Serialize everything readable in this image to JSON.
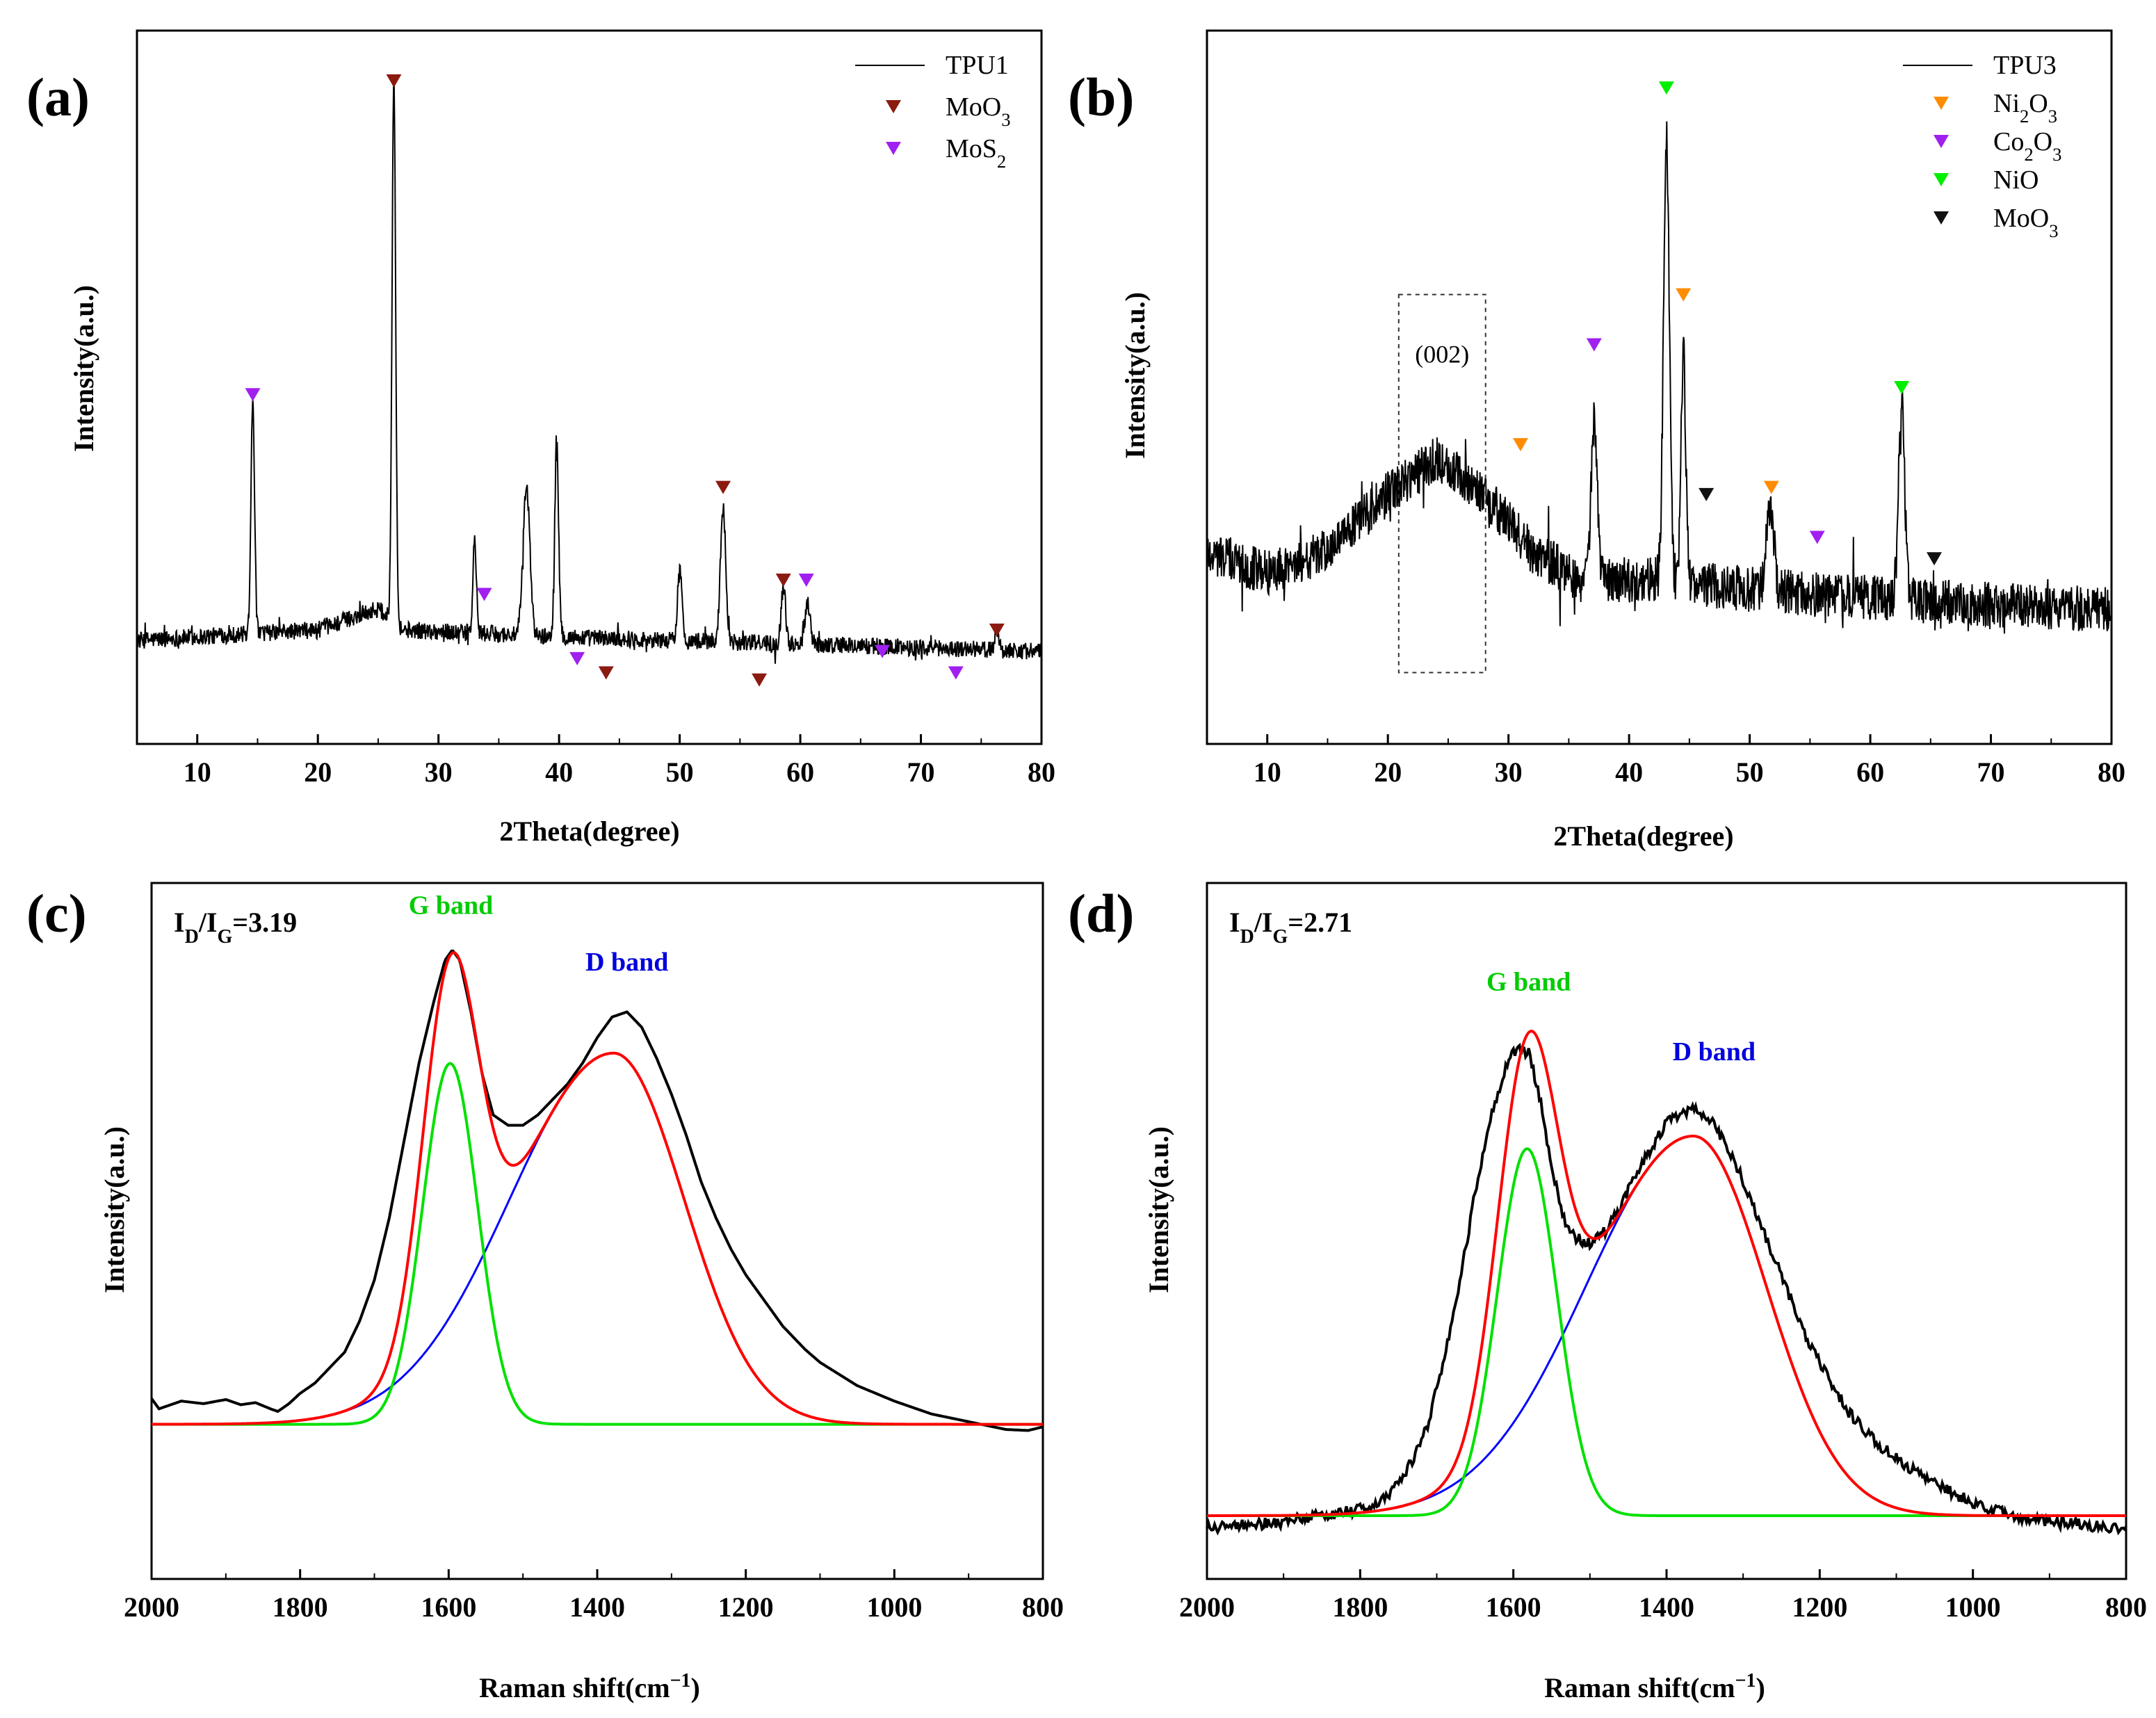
{
  "chart_data": [
    {
      "panel": "(a)",
      "type": "line",
      "xlabel": "2Theta(degree)",
      "ylabel": "Intensity(a.u.)",
      "xlim": [
        5,
        80
      ],
      "ylim": [
        0,
        100
      ],
      "xticks": [
        10,
        20,
        30,
        40,
        50,
        60,
        70,
        80
      ],
      "legend_position": "top-right",
      "series": [
        {
          "name": "TPU1",
          "color": "#000000",
          "noise": 1.2,
          "baseline": [
            [
              5,
              14.5
            ],
            [
              20,
              16
            ],
            [
              25,
              19
            ],
            [
              27,
              16
            ],
            [
              40,
              15
            ],
            [
              60,
              14
            ],
            [
              80,
              13
            ]
          ],
          "peaks": [
            [
              14.6,
              33,
              0.15
            ],
            [
              26.3,
              77,
              0.15
            ],
            [
              33.0,
              13,
              0.14
            ],
            [
              37.3,
              21,
              0.28
            ],
            [
              39.8,
              27,
              0.16
            ],
            [
              50.0,
              10,
              0.18
            ],
            [
              53.6,
              19,
              0.22
            ],
            [
              58.6,
              8,
              0.18
            ],
            [
              60.6,
              6,
              0.22
            ],
            [
              76.3,
              3,
              0.15
            ]
          ]
        }
      ],
      "markers": [
        {
          "name": "MoO",
          "sub": "3",
          "color": "#8b1a10",
          "points": [
            [
              26.3,
              93
            ],
            [
              43.9,
              10
            ],
            [
              53.6,
              36
            ],
            [
              56.6,
              9
            ],
            [
              58.6,
              23
            ],
            [
              76.3,
              16
            ]
          ]
        },
        {
          "name": "MoS",
          "sub": "2",
          "color": "#a020f0",
          "points": [
            [
              14.6,
              49
            ],
            [
              33.8,
              21
            ],
            [
              41.5,
              12
            ],
            [
              60.5,
              23
            ],
            [
              66.8,
              13
            ],
            [
              72.9,
              10
            ]
          ]
        }
      ]
    },
    {
      "panel": "(b)",
      "type": "line",
      "xlabel": "2Theta(degree)",
      "ylabel": "Intensity(a.u.)",
      "xlim": [
        5,
        80
      ],
      "ylim": [
        0,
        100
      ],
      "xticks": [
        10,
        20,
        30,
        40,
        50,
        60,
        70,
        80
      ],
      "legend_position": "top-right",
      "annotation": {
        "text": "(002)",
        "x0": 20.9,
        "x1": 28.1,
        "y0": 10,
        "y1": 63
      },
      "series": [
        {
          "name": "TPU3",
          "color": "#000000",
          "noise": 3.2,
          "baseline": [
            [
              5,
              27
            ],
            [
              10,
              24
            ],
            [
              15,
              27
            ],
            [
              20,
              35
            ],
            [
              24,
              40
            ],
            [
              28,
              35
            ],
            [
              32,
              27
            ],
            [
              36,
              23
            ],
            [
              42,
              23
            ],
            [
              48,
              22
            ],
            [
              55,
              21
            ],
            [
              65,
              20
            ],
            [
              75,
              19
            ],
            [
              80,
              19
            ]
          ],
          "peaks": [
            [
              37.1,
              22,
              0.25
            ],
            [
              43.1,
              62,
              0.24
            ],
            [
              44.5,
              32,
              0.2
            ],
            [
              51.7,
              12,
              0.3
            ],
            [
              62.6,
              28,
              0.25
            ]
          ]
        }
      ],
      "markers": [
        {
          "name": "Ni",
          "sub": "2",
          "name2": "O",
          "sub2": "3",
          "color": "#ff8c00",
          "points": [
            [
              31.0,
              42
            ],
            [
              44.5,
              63
            ],
            [
              51.8,
              36
            ]
          ]
        },
        {
          "name": "Co",
          "sub": "2",
          "name2": "O",
          "sub2": "3",
          "color": "#a020f0",
          "points": [
            [
              37.1,
              56
            ],
            [
              55.6,
              29
            ]
          ]
        },
        {
          "name": "NiO",
          "color": "#00ee00",
          "points": [
            [
              43.1,
              92
            ],
            [
              62.6,
              50
            ]
          ]
        },
        {
          "name": "MoO",
          "sub": "3",
          "color": "#111111",
          "points": [
            [
              46.4,
              35
            ],
            [
              65.3,
              26
            ]
          ]
        }
      ]
    },
    {
      "panel": "(c)",
      "type": "line",
      "xlabel": "Raman shift(cm",
      "xlabel_sup": "−1",
      "xlabel_end": ")",
      "ylabel": "Intensity(a.u.)",
      "xlim": [
        2000,
        800
      ],
      "ylim": [
        -30,
        105
      ],
      "xticks": [
        2000,
        1800,
        1600,
        1400,
        1200,
        1000,
        800
      ],
      "annotation": {
        "lead": "I",
        "sub1": "D",
        "mid": "/I",
        "sub2": "G",
        "tail": "=3.19"
      },
      "labels": [
        {
          "text": "G band",
          "color": "#00cc00",
          "x": 1597,
          "y": 99
        },
        {
          "text": "D band",
          "color": "#0000dd",
          "x": 1360,
          "y": 88
        }
      ],
      "series": [
        {
          "name": "measured",
          "color": "#000000",
          "points": [
            [
              2000,
              5
            ],
            [
              1990,
              3
            ],
            [
              1960,
              4.5
            ],
            [
              1930,
              4
            ],
            [
              1900,
              4.8
            ],
            [
              1880,
              3.8
            ],
            [
              1860,
              4.2
            ],
            [
              1840,
              3
            ],
            [
              1830,
              2.5
            ],
            [
              1815,
              4
            ],
            [
              1800,
              6
            ],
            [
              1780,
              8
            ],
            [
              1760,
              11
            ],
            [
              1740,
              14
            ],
            [
              1720,
              20
            ],
            [
              1700,
              28
            ],
            [
              1680,
              40
            ],
            [
              1660,
              55
            ],
            [
              1640,
              70
            ],
            [
              1620,
              82
            ],
            [
              1605,
              90
            ],
            [
              1595,
              92
            ],
            [
              1585,
              90
            ],
            [
              1570,
              80
            ],
            [
              1555,
              68
            ],
            [
              1540,
              60
            ],
            [
              1520,
              58
            ],
            [
              1500,
              58
            ],
            [
              1480,
              60
            ],
            [
              1460,
              63
            ],
            [
              1440,
              66
            ],
            [
              1420,
              70
            ],
            [
              1400,
              75
            ],
            [
              1380,
              79
            ],
            [
              1360,
              80
            ],
            [
              1340,
              77
            ],
            [
              1320,
              71
            ],
            [
              1300,
              64
            ],
            [
              1280,
              56
            ],
            [
              1260,
              47
            ],
            [
              1240,
              40
            ],
            [
              1220,
              34
            ],
            [
              1200,
              29
            ],
            [
              1180,
              25
            ],
            [
              1150,
              19
            ],
            [
              1120,
              14.5
            ],
            [
              1100,
              12
            ],
            [
              1050,
              7.5
            ],
            [
              1000,
              4.5
            ],
            [
              950,
              2
            ],
            [
              900,
              0.5
            ],
            [
              850,
              -1
            ],
            [
              820,
              -1.2
            ],
            [
              800,
              -0.5
            ]
          ]
        },
        {
          "name": "G",
          "color": "#00e000",
          "type": "gauss",
          "center": 1598,
          "amp": 70,
          "sigma": 37
        },
        {
          "name": "D",
          "color": "#0000ff",
          "type": "skew",
          "center": 1378,
          "amp": 72,
          "sigma_left": 95,
          "sigma_right": 140
        },
        {
          "name": "fit",
          "color": "#ff0000",
          "type": "sum"
        }
      ]
    },
    {
      "panel": "(d)",
      "type": "line",
      "xlabel": "Raman shift(cm",
      "xlabel_sup": "−1",
      "xlabel_end": ")",
      "ylabel": "Intensity(a.u.)",
      "xlim": [
        2000,
        800
      ],
      "ylim": [
        -10,
        100
      ],
      "xticks": [
        2000,
        1800,
        1600,
        1400,
        1200,
        1000,
        800
      ],
      "annotation": {
        "lead": "I",
        "sub1": "D",
        "mid": "/I",
        "sub2": "G",
        "tail": "=2.71"
      },
      "labels": [
        {
          "text": "G band",
          "color": "#00cc00",
          "x": 1580,
          "y": 83
        },
        {
          "text": "D band",
          "color": "#0000dd",
          "x": 1338,
          "y": 72
        }
      ],
      "series": [
        {
          "name": "measured",
          "color": "#000000",
          "noise": 0.9,
          "points": [
            [
              2000,
              -2
            ],
            [
              1950,
              -1.5
            ],
            [
              1900,
              -1
            ],
            [
              1850,
              0
            ],
            [
              1800,
              1
            ],
            [
              1775,
              2
            ],
            [
              1750,
              5
            ],
            [
              1730,
              9
            ],
            [
              1710,
              15
            ],
            [
              1690,
              25
            ],
            [
              1670,
              37
            ],
            [
              1650,
              51
            ],
            [
              1630,
              63
            ],
            [
              1610,
              71
            ],
            [
              1595,
              74
            ],
            [
              1580,
              73
            ],
            [
              1565,
              66
            ],
            [
              1550,
              55
            ],
            [
              1535,
              47
            ],
            [
              1520,
              44
            ],
            [
              1500,
              43
            ],
            [
              1480,
              45
            ],
            [
              1460,
              49
            ],
            [
              1440,
              54
            ],
            [
              1420,
              58
            ],
            [
              1400,
              62
            ],
            [
              1380,
              64
            ],
            [
              1360,
              64
            ],
            [
              1340,
              62
            ],
            [
              1320,
              58
            ],
            [
              1300,
              53
            ],
            [
              1280,
              47
            ],
            [
              1260,
              41
            ],
            [
              1240,
              35
            ],
            [
              1220,
              29
            ],
            [
              1200,
              24
            ],
            [
              1180,
              20
            ],
            [
              1160,
              16
            ],
            [
              1130,
              12
            ],
            [
              1100,
              9
            ],
            [
              1050,
              5
            ],
            [
              1000,
              2
            ],
            [
              950,
              0
            ],
            [
              900,
              -1
            ],
            [
              850,
              -1.5
            ],
            [
              800,
              -2
            ]
          ]
        },
        {
          "name": "G",
          "color": "#00e000",
          "type": "gauss",
          "center": 1582,
          "amp": 58,
          "sigma": 39
        },
        {
          "name": "D",
          "color": "#0000ff",
          "type": "skew",
          "center": 1365,
          "amp": 60,
          "sigma_left": 95,
          "sigma_right": 140
        },
        {
          "name": "fit",
          "color": "#ff0000",
          "type": "sum"
        }
      ]
    }
  ]
}
